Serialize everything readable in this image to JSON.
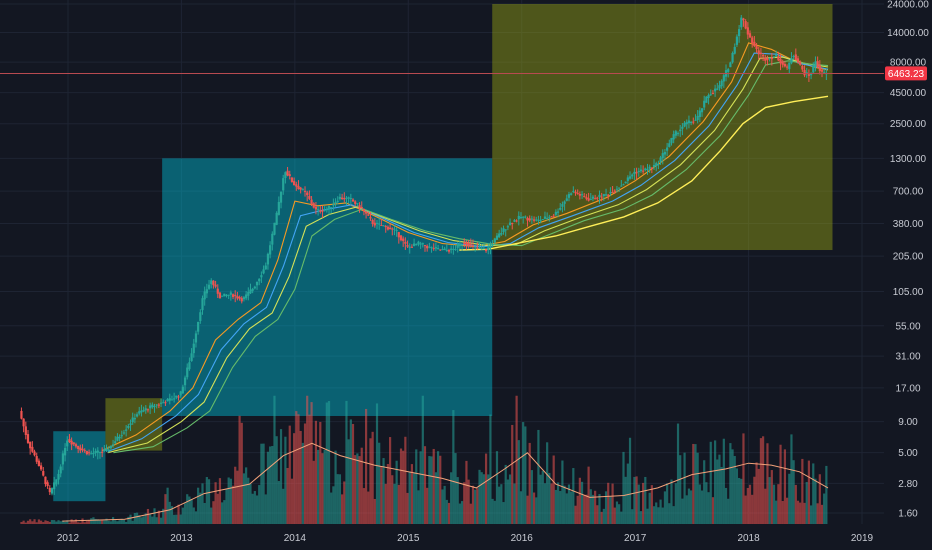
{
  "chart_data": {
    "type": "candlestick",
    "scale": "log",
    "grid": true,
    "x_axis": {
      "range": [
        2011.45,
        2019.05
      ],
      "ticks": [
        {
          "value": 2012,
          "label": "2012"
        },
        {
          "value": 2013,
          "label": "2013"
        },
        {
          "value": 2014,
          "label": "2014"
        },
        {
          "value": 2015,
          "label": "2015"
        },
        {
          "value": 2016,
          "label": "2016"
        },
        {
          "value": 2017,
          "label": "2017"
        },
        {
          "value": 2018,
          "label": "2018"
        },
        {
          "value": 2019,
          "label": "2019"
        }
      ]
    },
    "y_axis": {
      "range": [
        1.35,
        24000
      ],
      "ticks": [
        {
          "value": 24000,
          "label": "24000.00"
        },
        {
          "value": 14000,
          "label": "14000.00"
        },
        {
          "value": 8000,
          "label": "8000.00"
        },
        {
          "value": 4500,
          "label": "4500.00"
        },
        {
          "value": 2500,
          "label": "2500.00"
        },
        {
          "value": 1300,
          "label": "1300.00"
        },
        {
          "value": 700,
          "label": "700.00"
        },
        {
          "value": 380,
          "label": "380.00"
        },
        {
          "value": 205,
          "label": "205.00"
        },
        {
          "value": 105,
          "label": "105.00"
        },
        {
          "value": 55,
          "label": "55.00"
        },
        {
          "value": 31,
          "label": "31.00"
        },
        {
          "value": 17,
          "label": "17.00"
        },
        {
          "value": 9,
          "label": "9.00"
        },
        {
          "value": 5,
          "label": "5.00"
        },
        {
          "value": 2.8,
          "label": "2.80"
        },
        {
          "value": 1.6,
          "label": "1.60"
        }
      ]
    },
    "current_price": {
      "value": 6463.23,
      "label": "6463.23"
    },
    "price_path": [
      [
        2011.58,
        11
      ],
      [
        2011.66,
        6
      ],
      [
        2011.75,
        4
      ],
      [
        2011.85,
        2.3
      ],
      [
        2011.92,
        3.2
      ],
      [
        2012.0,
        6.5
      ],
      [
        2012.1,
        5.5
      ],
      [
        2012.2,
        4.9
      ],
      [
        2012.35,
        5.2
      ],
      [
        2012.5,
        7.5
      ],
      [
        2012.62,
        10.5
      ],
      [
        2012.75,
        12
      ],
      [
        2012.9,
        13.5
      ],
      [
        2013.0,
        15
      ],
      [
        2013.1,
        33
      ],
      [
        2013.2,
        95
      ],
      [
        2013.27,
        130
      ],
      [
        2013.35,
        95
      ],
      [
        2013.45,
        100
      ],
      [
        2013.55,
        90
      ],
      [
        2013.65,
        115
      ],
      [
        2013.75,
        170
      ],
      [
        2013.85,
        450
      ],
      [
        2013.92,
        1050
      ],
      [
        2014.0,
        800
      ],
      [
        2014.1,
        680
      ],
      [
        2014.2,
        480
      ],
      [
        2014.3,
        500
      ],
      [
        2014.4,
        620
      ],
      [
        2014.5,
        600
      ],
      [
        2014.6,
        500
      ],
      [
        2014.7,
        380
      ],
      [
        2014.8,
        360
      ],
      [
        2014.9,
        330
      ],
      [
        2015.0,
        240
      ],
      [
        2015.1,
        260
      ],
      [
        2015.2,
        240
      ],
      [
        2015.3,
        230
      ],
      [
        2015.4,
        230
      ],
      [
        2015.5,
        270
      ],
      [
        2015.6,
        240
      ],
      [
        2015.7,
        230
      ],
      [
        2015.8,
        300
      ],
      [
        2015.9,
        380
      ],
      [
        2016.0,
        430
      ],
      [
        2016.15,
        400
      ],
      [
        2016.3,
        450
      ],
      [
        2016.45,
        700
      ],
      [
        2016.6,
        600
      ],
      [
        2016.75,
        650
      ],
      [
        2016.9,
        800
      ],
      [
        2017.0,
        1000
      ],
      [
        2017.1,
        1050
      ],
      [
        2017.2,
        1150
      ],
      [
        2017.35,
        2000
      ],
      [
        2017.45,
        2500
      ],
      [
        2017.55,
        2700
      ],
      [
        2017.65,
        4300
      ],
      [
        2017.75,
        5000
      ],
      [
        2017.85,
        8000
      ],
      [
        2017.95,
        19000
      ],
      [
        2018.0,
        14000
      ],
      [
        2018.08,
        10000
      ],
      [
        2018.15,
        8500
      ],
      [
        2018.25,
        9000
      ],
      [
        2018.35,
        7000
      ],
      [
        2018.4,
        9500
      ],
      [
        2018.5,
        6500
      ],
      [
        2018.55,
        6200
      ],
      [
        2018.6,
        8200
      ],
      [
        2018.65,
        6500
      ],
      [
        2018.68,
        6463.23
      ]
    ],
    "moving_averages": [
      {
        "color": "#f59a23",
        "points": [
          [
            2012.3,
            5.2
          ],
          [
            2012.6,
            7
          ],
          [
            2012.9,
            11
          ],
          [
            2013.1,
            17
          ],
          [
            2013.3,
            42
          ],
          [
            2013.5,
            62
          ],
          [
            2013.7,
            85
          ],
          [
            2013.85,
            190
          ],
          [
            2014.0,
            580
          ],
          [
            2014.2,
            530
          ],
          [
            2014.45,
            560
          ],
          [
            2014.7,
            440
          ],
          [
            2015.0,
            320
          ],
          [
            2015.3,
            260
          ],
          [
            2015.6,
            245
          ],
          [
            2015.85,
            270
          ],
          [
            2016.1,
            370
          ],
          [
            2016.4,
            460
          ],
          [
            2016.75,
            620
          ],
          [
            2017.0,
            850
          ],
          [
            2017.3,
            1350
          ],
          [
            2017.6,
            2600
          ],
          [
            2017.85,
            5500
          ],
          [
            2018.0,
            11500
          ],
          [
            2018.2,
            10200
          ],
          [
            2018.4,
            8200
          ],
          [
            2018.6,
            7200
          ],
          [
            2018.7,
            6900
          ]
        ]
      },
      {
        "color": "#42a5f5",
        "points": [
          [
            2012.35,
            5.1
          ],
          [
            2012.65,
            6.5
          ],
          [
            2012.95,
            10
          ],
          [
            2013.15,
            15
          ],
          [
            2013.35,
            35
          ],
          [
            2013.55,
            57
          ],
          [
            2013.75,
            78
          ],
          [
            2013.9,
            170
          ],
          [
            2014.05,
            440
          ],
          [
            2014.25,
            490
          ],
          [
            2014.5,
            540
          ],
          [
            2014.75,
            430
          ],
          [
            2015.05,
            320
          ],
          [
            2015.35,
            265
          ],
          [
            2015.65,
            245
          ],
          [
            2015.9,
            260
          ],
          [
            2016.15,
            350
          ],
          [
            2016.45,
            440
          ],
          [
            2016.8,
            580
          ],
          [
            2017.05,
            780
          ],
          [
            2017.35,
            1250
          ],
          [
            2017.65,
            2400
          ],
          [
            2017.9,
            5200
          ],
          [
            2018.05,
            9500
          ],
          [
            2018.25,
            9300
          ],
          [
            2018.45,
            7800
          ],
          [
            2018.7,
            7000
          ]
        ]
      },
      {
        "color": "#d4e157",
        "points": [
          [
            2012.35,
            5.0
          ],
          [
            2012.7,
            6
          ],
          [
            2013.0,
            9
          ],
          [
            2013.2,
            13
          ],
          [
            2013.4,
            30
          ],
          [
            2013.6,
            52
          ],
          [
            2013.8,
            70
          ],
          [
            2013.95,
            140
          ],
          [
            2014.1,
            360
          ],
          [
            2014.3,
            450
          ],
          [
            2014.55,
            520
          ],
          [
            2014.8,
            420
          ],
          [
            2015.1,
            330
          ],
          [
            2015.4,
            275
          ],
          [
            2015.7,
            250
          ],
          [
            2015.95,
            255
          ],
          [
            2016.2,
            330
          ],
          [
            2016.5,
            420
          ],
          [
            2016.85,
            540
          ],
          [
            2017.1,
            720
          ],
          [
            2017.4,
            1150
          ],
          [
            2017.7,
            2200
          ],
          [
            2017.95,
            4800
          ],
          [
            2018.1,
            8600
          ],
          [
            2018.3,
            8800
          ],
          [
            2018.5,
            7800
          ],
          [
            2018.7,
            7300
          ]
        ]
      },
      {
        "color": "#66bb6a",
        "points": [
          [
            2012.4,
            5.0
          ],
          [
            2012.75,
            5.6
          ],
          [
            2013.05,
            8
          ],
          [
            2013.25,
            11
          ],
          [
            2013.45,
            25
          ],
          [
            2013.65,
            45
          ],
          [
            2013.85,
            62
          ],
          [
            2014.0,
            110
          ],
          [
            2014.15,
            300
          ],
          [
            2014.35,
            410
          ],
          [
            2014.6,
            500
          ],
          [
            2014.85,
            410
          ],
          [
            2015.15,
            330
          ],
          [
            2015.45,
            285
          ],
          [
            2015.75,
            255
          ],
          [
            2016.0,
            250
          ],
          [
            2016.25,
            310
          ],
          [
            2016.55,
            400
          ],
          [
            2016.9,
            500
          ],
          [
            2017.15,
            650
          ],
          [
            2017.45,
            1050
          ],
          [
            2017.75,
            2000
          ],
          [
            2018.0,
            4300
          ],
          [
            2018.15,
            7600
          ],
          [
            2018.35,
            8200
          ],
          [
            2018.55,
            7700
          ],
          [
            2018.7,
            7500
          ]
        ]
      },
      {
        "color": "#ffee58",
        "points": [
          [
            2015.45,
            230
          ],
          [
            2015.7,
            233
          ],
          [
            2016.0,
            265
          ],
          [
            2016.3,
            300
          ],
          [
            2016.6,
            360
          ],
          [
            2016.9,
            430
          ],
          [
            2017.2,
            560
          ],
          [
            2017.5,
            850
          ],
          [
            2017.75,
            1500
          ],
          [
            2017.95,
            2500
          ],
          [
            2018.15,
            3400
          ],
          [
            2018.4,
            3800
          ],
          [
            2018.7,
            4200
          ]
        ]
      }
    ],
    "volume_ma": [
      [
        2011.95,
        0.03
      ],
      [
        2012.5,
        0.05
      ],
      [
        2012.9,
        0.15
      ],
      [
        2013.2,
        0.32
      ],
      [
        2013.6,
        0.42
      ],
      [
        2013.9,
        0.72
      ],
      [
        2014.15,
        0.85
      ],
      [
        2014.4,
        0.72
      ],
      [
        2014.7,
        0.62
      ],
      [
        2015.0,
        0.55
      ],
      [
        2015.3,
        0.48
      ],
      [
        2015.6,
        0.38
      ],
      [
        2015.85,
        0.58
      ],
      [
        2016.05,
        0.75
      ],
      [
        2016.3,
        0.42
      ],
      [
        2016.6,
        0.28
      ],
      [
        2016.9,
        0.3
      ],
      [
        2017.2,
        0.38
      ],
      [
        2017.5,
        0.52
      ],
      [
        2017.8,
        0.58
      ],
      [
        2018.0,
        0.64
      ],
      [
        2018.2,
        0.62
      ],
      [
        2018.45,
        0.55
      ],
      [
        2018.7,
        0.38
      ]
    ],
    "highlight_boxes": [
      {
        "x0": 2011.87,
        "x1": 2012.33,
        "y0": 2.0,
        "y1": 7.5,
        "color": "teal"
      },
      {
        "x0": 2012.33,
        "x1": 2012.83,
        "y0": 5.2,
        "y1": 14,
        "color": "olive"
      },
      {
        "x0": 2012.83,
        "x1": 2015.74,
        "y0": 10,
        "y1": 1300,
        "color": "teal"
      },
      {
        "x0": 2015.74,
        "x1": 2018.74,
        "y0": 230,
        "y1": 24000,
        "color": "olive"
      }
    ]
  }
}
